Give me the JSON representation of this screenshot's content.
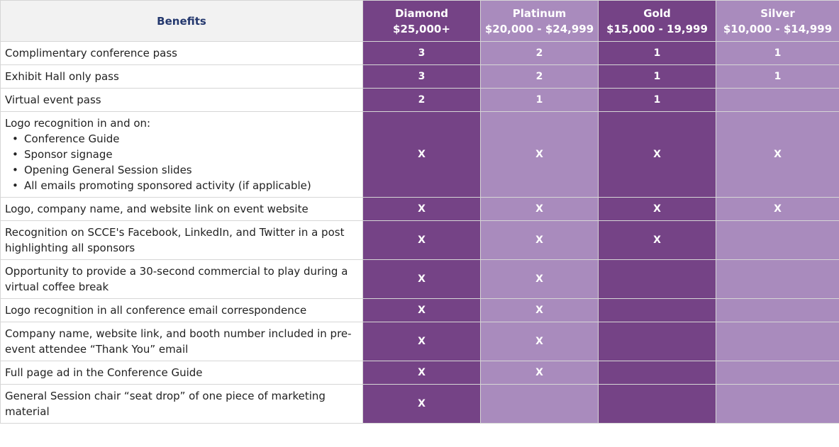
{
  "header": {
    "benefits_label": "Benefits",
    "tiers": [
      {
        "name": "Diamond",
        "price": "$25,000+"
      },
      {
        "name": "Platinum",
        "price": "$20,000 - $24,999"
      },
      {
        "name": "Gold",
        "price": "$15,000 - 19,999"
      },
      {
        "name": "Silver",
        "price": "$10,000 - $14,999"
      }
    ]
  },
  "rows": [
    {
      "benefit": "Complimentary conference pass",
      "values": [
        "3",
        "2",
        "1",
        "1"
      ]
    },
    {
      "benefit": "Exhibit Hall only pass",
      "values": [
        "3",
        "2",
        "1",
        "1"
      ]
    },
    {
      "benefit": "Virtual event pass",
      "values": [
        "2",
        "1",
        "1",
        ""
      ]
    },
    {
      "benefit": "Logo recognition in and on:",
      "bullets": [
        "Conference Guide",
        "Sponsor signage",
        "Opening General Session slides",
        "All emails promoting sponsored activity (if applicable)"
      ],
      "values": [
        "X",
        "X",
        "X",
        "X"
      ]
    },
    {
      "benefit": "Logo, company name, and website link on event website",
      "values": [
        "X",
        "X",
        "X",
        "X"
      ]
    },
    {
      "benefit": "Recognition on SCCE's Facebook, LinkedIn, and Twitter in a post highlighting all sponsors",
      "values": [
        "X",
        "X",
        "X",
        ""
      ]
    },
    {
      "benefit": "Opportunity to provide a 30-second commercial to play during a virtual coffee break",
      "values": [
        "X",
        "X",
        "",
        ""
      ]
    },
    {
      "benefit": "Logo recognition in all conference email correspondence",
      "values": [
        "X",
        "X",
        "",
        ""
      ]
    },
    {
      "benefit": "Company name, website link, and booth number included in pre-event attendee “Thank You” email",
      "values": [
        "X",
        "X",
        "",
        ""
      ]
    },
    {
      "benefit": "Full page ad in the Conference Guide",
      "values": [
        "X",
        "X",
        "",
        ""
      ]
    },
    {
      "benefit": "General Session chair “seat drop” of one piece of marketing material",
      "values": [
        "X",
        "",
        "",
        ""
      ]
    }
  ],
  "colors": {
    "tier_dark": "#754386",
    "tier_light": "#a98bbd",
    "header_text": "#24386e",
    "header_bg": "#f2f2f2"
  }
}
